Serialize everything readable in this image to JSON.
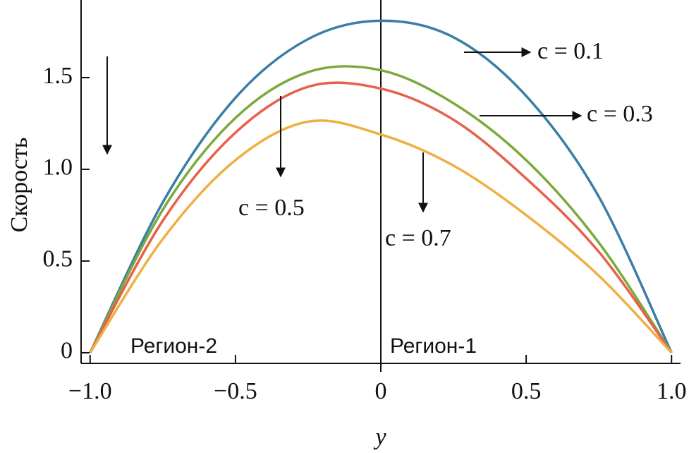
{
  "chart_data": {
    "type": "line",
    "x_label": "y",
    "y_label": "Скорость",
    "x": [
      -1,
      -0.75,
      -0.5,
      -0.25,
      0,
      0.25,
      0.5,
      0.75,
      1
    ],
    "series": [
      {
        "name": "c = 0.1",
        "color": "#3a7ea6",
        "values": [
          0,
          0.82,
          1.39,
          1.71,
          1.81,
          1.72,
          1.4,
          0.85,
          0
        ]
      },
      {
        "name": "c = 0.3",
        "color": "#7aaa3c",
        "values": [
          0,
          0.78,
          1.28,
          1.53,
          1.54,
          1.36,
          1.05,
          0.6,
          0
        ]
      },
      {
        "name": "c = 0.5",
        "color": "#e8604a",
        "values": [
          0,
          0.72,
          1.2,
          1.45,
          1.44,
          1.27,
          0.95,
          0.55,
          0
        ]
      },
      {
        "name": "c = 0.7",
        "color": "#eeb043",
        "values": [
          0,
          0.62,
          1.05,
          1.26,
          1.19,
          1.02,
          0.75,
          0.42,
          0
        ]
      }
    ],
    "annotations": [
      "Регион-2",
      "Регион-1"
    ],
    "xlim": [
      -1.031,
      1.031
    ],
    "ylim": [
      -0.058,
      1.923
    ],
    "xticks": [
      {
        "value": -1,
        "label": "−1.0"
      },
      {
        "value": -0.5,
        "label": "−0.5"
      },
      0,
      0.5,
      {
        "value": 1,
        "label": "1.0"
      }
    ],
    "yticks": [
      0,
      0.5,
      {
        "value": 1,
        "label": "1.0"
      },
      1.5
    ]
  }
}
